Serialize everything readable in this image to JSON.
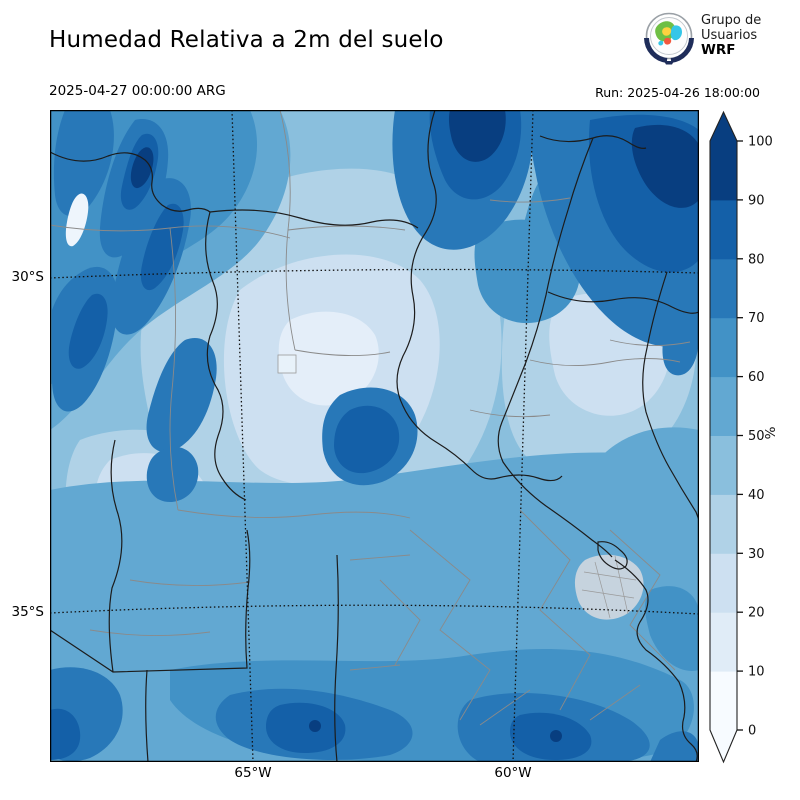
{
  "header": {
    "title": "Humedad Relativa a 2m del suelo",
    "valid_time": "2025-04-27 00:00:00 ARG",
    "run_label": "Run: 2025-04-26 18:00:00",
    "logo_text": [
      "Grupo de",
      "Usuarios",
      "WRF"
    ]
  },
  "map": {
    "lat_ticks": [
      {
        "label": "30°S"
      },
      {
        "label": "35°S"
      }
    ],
    "lon_ticks": [
      {
        "label": "65°W"
      },
      {
        "label": "60°W"
      }
    ]
  },
  "colorbar": {
    "unit": "%",
    "tick_labels": [
      "0",
      "10",
      "20",
      "30",
      "40",
      "50",
      "60",
      "70",
      "80",
      "90",
      "100"
    ],
    "bin_colors": [
      "#f7fbff",
      "#e0ecf7",
      "#cde0f1",
      "#b0d2e7",
      "#8abfdd",
      "#62a8d2",
      "#4292c6",
      "#2878b8",
      "#1460a8",
      "#083e80"
    ],
    "under_color": "#f7fbff",
    "over_color": "#083e80",
    "frame_color": "#222222"
  }
}
